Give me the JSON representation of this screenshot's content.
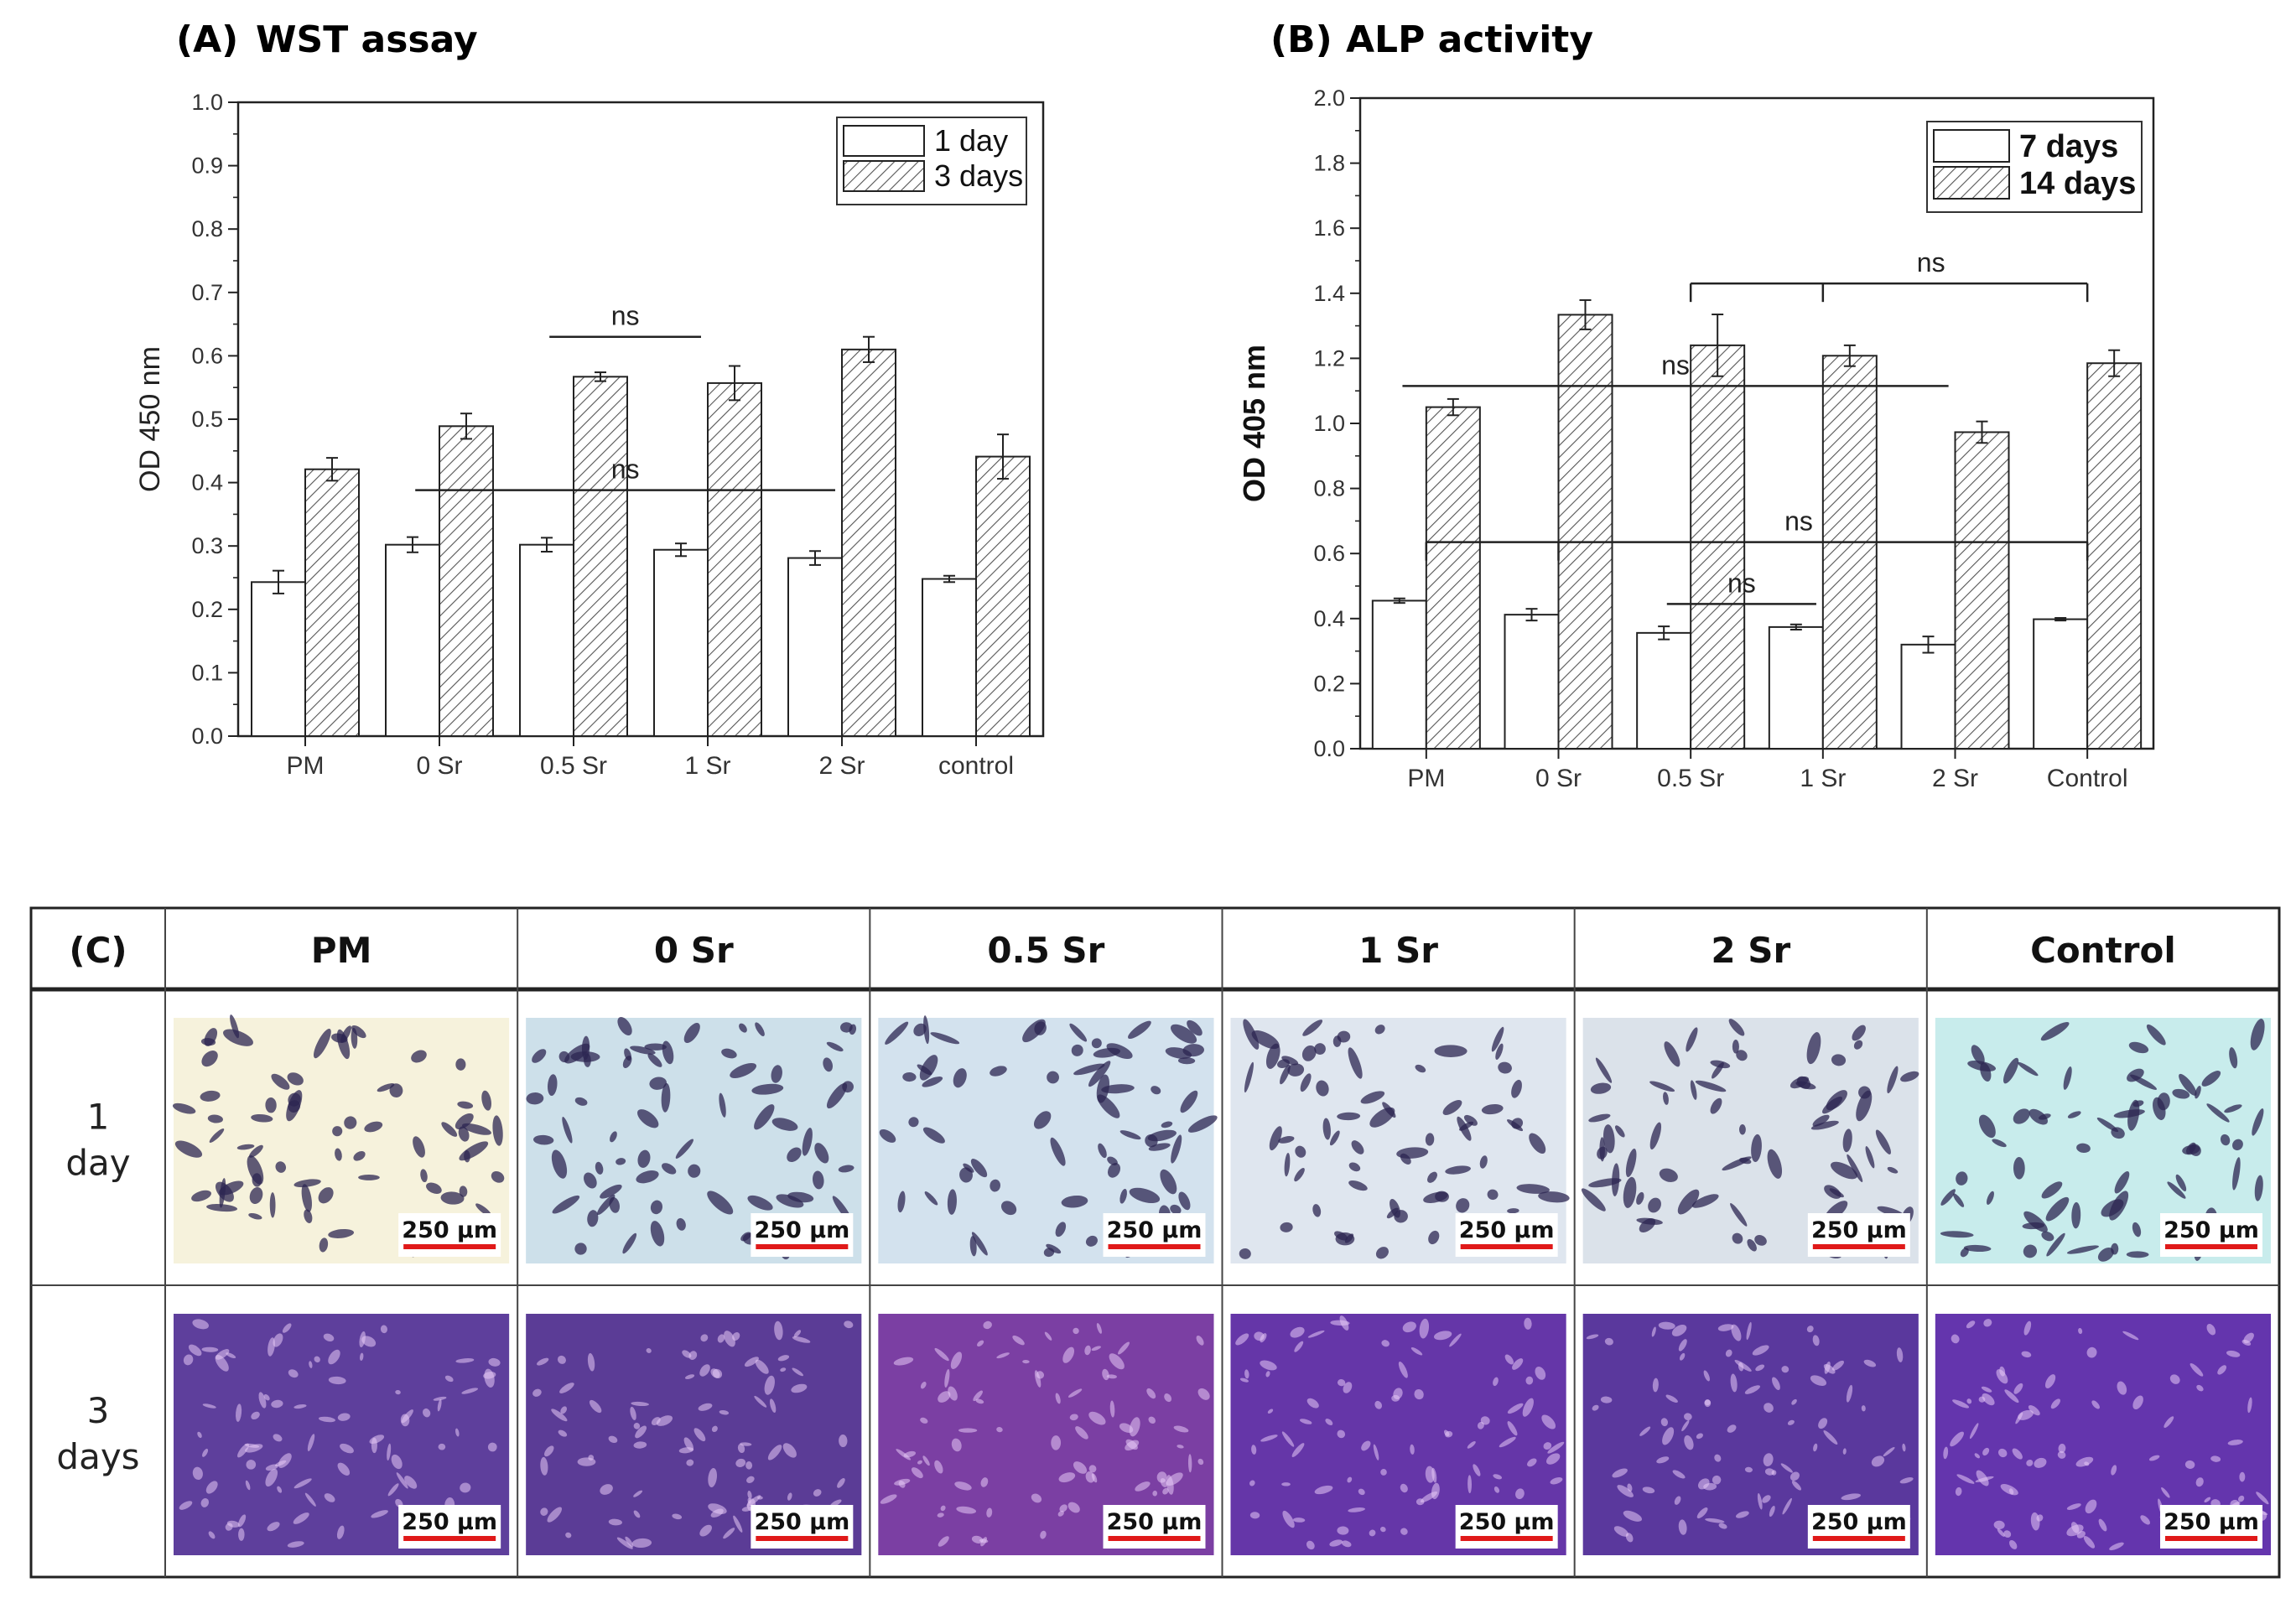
{
  "chart_data": [
    {
      "panel_label": "(A)",
      "title": "WST assay",
      "type": "bar",
      "ylabel": "OD 450 nm",
      "ylim": [
        0,
        1.0
      ],
      "ytick_step": 0.1,
      "categories": [
        "PM",
        "0 Sr",
        "0.5 Sr",
        "1 Sr",
        "2 Sr",
        "control"
      ],
      "series": [
        {
          "name": "1 day",
          "pattern": "open",
          "values": [
            0.243,
            0.302,
            0.302,
            0.294,
            0.281,
            0.248
          ],
          "errors": [
            0.018,
            0.012,
            0.011,
            0.01,
            0.011,
            0.005
          ]
        },
        {
          "name": "3 days",
          "pattern": "hatched",
          "values": [
            0.421,
            0.489,
            0.567,
            0.557,
            0.61,
            0.441
          ],
          "errors": [
            0.018,
            0.02,
            0.007,
            0.027,
            0.02,
            0.035
          ]
        }
      ],
      "legend_position": "top-right",
      "annotations": [
        {
          "text": "ns",
          "y": 0.388,
          "from": "0 Sr",
          "to": "2 Sr"
        },
        {
          "text": "ns",
          "y": 0.63,
          "from": "0.5 Sr",
          "to": "1 Sr"
        }
      ]
    },
    {
      "panel_label": "(B)",
      "title": "ALP activity",
      "type": "bar",
      "ylabel": "OD 405 nm",
      "ylim": [
        0,
        2.0
      ],
      "ytick_step": 0.2,
      "categories": [
        "PM",
        "0 Sr",
        "0.5 Sr",
        "1 Sr",
        "2 Sr",
        "Control"
      ],
      "series": [
        {
          "name": "7 days",
          "pattern": "open",
          "values": [
            0.455,
            0.412,
            0.356,
            0.374,
            0.32,
            0.398
          ],
          "errors": [
            0.007,
            0.018,
            0.02,
            0.008,
            0.025,
            0.004
          ]
        },
        {
          "name": "14 days",
          "pattern": "hatched",
          "values": [
            1.05,
            1.334,
            1.24,
            1.208,
            0.973,
            1.185
          ],
          "errors": [
            0.025,
            0.045,
            0.095,
            0.032,
            0.033,
            0.04
          ]
        }
      ],
      "legend_position": "top-right",
      "annotations": [
        {
          "text": "ns",
          "y": 1.43,
          "bracket": [
            "0.5 Sr",
            "1 Sr",
            "Control"
          ]
        },
        {
          "text": "ns",
          "y": 1.115,
          "from": "PM",
          "to": "2 Sr"
        },
        {
          "text": "ns",
          "y": 0.635,
          "bracket": [
            "PM",
            "0 Sr",
            "Control"
          ]
        },
        {
          "text": "ns",
          "y": 0.445,
          "from": "0.5 Sr",
          "to": "1 Sr"
        }
      ]
    }
  ],
  "panel_c": {
    "label": "(C)",
    "columns": [
      "PM",
      "0 Sr",
      "0.5 Sr",
      "1 Sr",
      "2 Sr",
      "Control"
    ],
    "rows": [
      {
        "label_line1": "1",
        "label_line2": "day"
      },
      {
        "label_line1": "3",
        "label_line2": "days"
      }
    ],
    "scale_bar": "250 μm",
    "day1_colors": [
      "#f6f2dc",
      "#cde0ea",
      "#d3e2ee",
      "#dfe6ef",
      "#dbe2ea",
      "#c8ecec"
    ],
    "day3_colors": [
      "#5e3f9c",
      "#5b3c96",
      "#7b3fa3",
      "#6536a8",
      "#5a389d",
      "#6435ad"
    ],
    "cell_colors": {
      "day1": "#2c2552",
      "day3": "#e6c8f5"
    },
    "scale_bar_color": "#e01919"
  }
}
